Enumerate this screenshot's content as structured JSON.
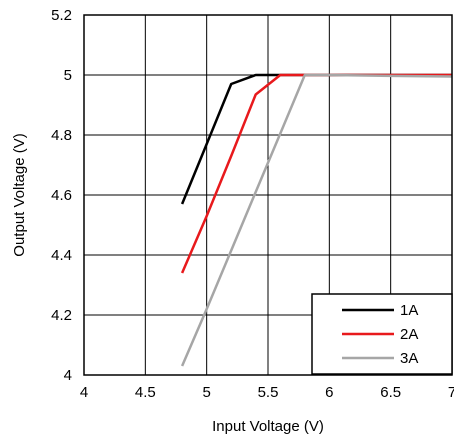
{
  "chart_data": {
    "type": "line",
    "title": "",
    "xlabel": "Input Voltage (V)",
    "ylabel": "Output Voltage (V)",
    "xlim": [
      4,
      7
    ],
    "ylim": [
      4,
      5.2
    ],
    "xticks": [
      4,
      4.5,
      5,
      5.5,
      6,
      6.5,
      7
    ],
    "yticks": [
      4,
      4.2,
      4.4,
      4.6,
      4.8,
      5,
      5.2
    ],
    "xtick_labels": [
      "4",
      "4.5",
      "5",
      "5.5",
      "6",
      "6.5",
      "7"
    ],
    "ytick_labels": [
      "4",
      "4.2",
      "4.4",
      "4.6",
      "4.8",
      "5",
      "5.2"
    ],
    "grid": true,
    "legend_position": "bottom-right",
    "series": [
      {
        "name": "1A",
        "color": "#000000",
        "x": [
          4.8,
          5.0,
          5.2,
          5.4,
          5.6,
          5.8,
          6.0,
          6.5,
          7.0
        ],
        "y": [
          4.57,
          4.77,
          4.97,
          5.0,
          5.0,
          5.0,
          5.0,
          5.0,
          5.0
        ]
      },
      {
        "name": "2A",
        "color": "#e8191c",
        "x": [
          4.8,
          5.0,
          5.2,
          5.4,
          5.6,
          5.8,
          6.0,
          6.5,
          7.0
        ],
        "y": [
          4.34,
          4.53,
          4.73,
          4.935,
          5.0,
          5.0,
          5.0,
          5.0,
          5.0
        ]
      },
      {
        "name": "3A",
        "color": "#a6a6a6",
        "x": [
          4.8,
          5.0,
          5.2,
          5.4,
          5.6,
          5.8,
          6.0,
          6.5,
          7.0
        ],
        "y": [
          4.03,
          4.22,
          4.415,
          4.61,
          4.805,
          5.0,
          5.0,
          4.997,
          4.995
        ]
      }
    ]
  }
}
